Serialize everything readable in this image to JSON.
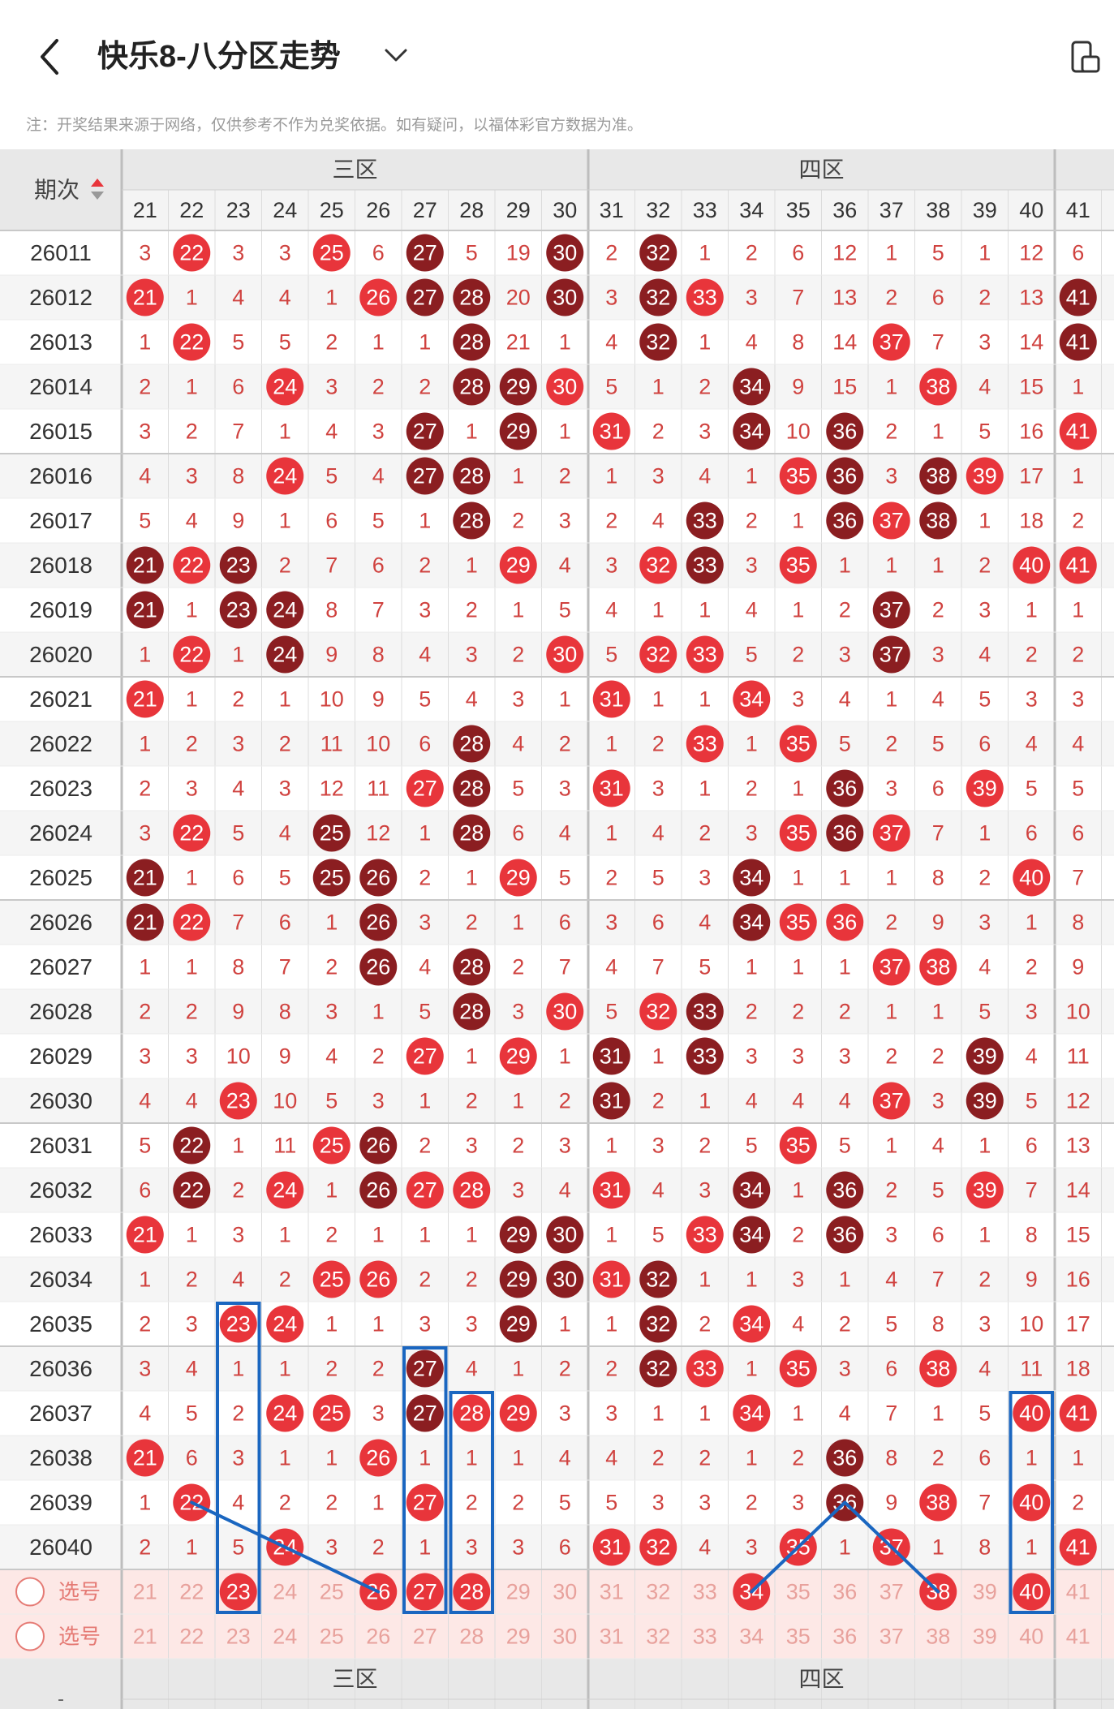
{
  "header": {
    "title": "快乐8-八分区走势",
    "back_icon": "chevron-left-icon",
    "dropdown_icon": "chevron-down-icon",
    "right_icon": "device-icon"
  },
  "notice": "注：开奖结果来源于网络，仅供参考不作为兑奖依据。如有疑问，以福体彩官方数据为准。",
  "table": {
    "period_header": "期次",
    "sort_icon": "sort-arrows-icon",
    "zones": [
      "三区",
      "四区"
    ],
    "columns": [
      21,
      22,
      23,
      24,
      25,
      26,
      27,
      28,
      29,
      30,
      31,
      32,
      33,
      34,
      35,
      36,
      37,
      38,
      39,
      40,
      41
    ],
    "select_label": "选号",
    "bottom_dash": "-",
    "rows": [
      {
        "period": "26011",
        "cells": [
          3,
          22,
          3,
          3,
          25,
          6,
          27,
          5,
          19,
          30,
          2,
          32,
          1,
          2,
          6,
          12,
          1,
          5,
          1,
          12,
          6
        ],
        "hits": [
          22,
          25,
          27,
          30,
          32
        ]
      },
      {
        "period": "26012",
        "cells": [
          21,
          1,
          4,
          4,
          1,
          26,
          27,
          28,
          20,
          30,
          3,
          32,
          33,
          3,
          7,
          13,
          2,
          6,
          2,
          13,
          41
        ],
        "hits": [
          21,
          26,
          27,
          28,
          30,
          32,
          33,
          41
        ]
      },
      {
        "period": "26013",
        "cells": [
          1,
          22,
          5,
          5,
          2,
          1,
          1,
          28,
          21,
          1,
          4,
          32,
          1,
          4,
          8,
          14,
          37,
          7,
          3,
          14,
          41
        ],
        "hits": [
          22,
          28,
          32,
          37,
          41
        ]
      },
      {
        "period": "26014",
        "cells": [
          2,
          1,
          6,
          24,
          3,
          2,
          2,
          28,
          29,
          30,
          5,
          1,
          2,
          34,
          9,
          15,
          1,
          38,
          4,
          15,
          1
        ],
        "hits": [
          24,
          28,
          29,
          30,
          34,
          38
        ]
      },
      {
        "period": "26015",
        "cells": [
          3,
          2,
          7,
          1,
          4,
          3,
          27,
          1,
          29,
          1,
          31,
          2,
          3,
          34,
          10,
          36,
          2,
          1,
          5,
          16,
          41
        ],
        "hits": [
          27,
          29,
          31,
          34,
          36,
          41
        ]
      },
      {
        "period": "26016",
        "cells": [
          4,
          3,
          8,
          24,
          5,
          4,
          27,
          28,
          1,
          2,
          1,
          3,
          4,
          1,
          35,
          36,
          3,
          38,
          39,
          17,
          1
        ],
        "hits": [
          24,
          27,
          28,
          35,
          36,
          38,
          39
        ]
      },
      {
        "period": "26017",
        "cells": [
          5,
          4,
          9,
          1,
          6,
          5,
          1,
          28,
          2,
          3,
          2,
          4,
          33,
          2,
          1,
          36,
          37,
          38,
          1,
          18,
          2
        ],
        "hits": [
          28,
          33,
          36,
          37,
          38
        ]
      },
      {
        "period": "26018",
        "cells": [
          21,
          22,
          23,
          2,
          7,
          6,
          2,
          1,
          29,
          4,
          3,
          32,
          33,
          3,
          35,
          1,
          1,
          1,
          2,
          40,
          41
        ],
        "hits": [
          21,
          22,
          23,
          29,
          32,
          33,
          35,
          40,
          41
        ]
      },
      {
        "period": "26019",
        "cells": [
          21,
          1,
          23,
          24,
          8,
          7,
          3,
          2,
          1,
          5,
          4,
          1,
          1,
          4,
          1,
          2,
          37,
          2,
          3,
          1,
          1
        ],
        "hits": [
          21,
          23,
          24,
          37
        ]
      },
      {
        "period": "26020",
        "cells": [
          1,
          22,
          1,
          24,
          9,
          8,
          4,
          3,
          2,
          30,
          5,
          32,
          33,
          5,
          2,
          3,
          37,
          3,
          4,
          2,
          2
        ],
        "hits": [
          22,
          24,
          30,
          32,
          33,
          37
        ]
      },
      {
        "period": "26021",
        "cells": [
          21,
          1,
          2,
          1,
          10,
          9,
          5,
          4,
          3,
          1,
          31,
          1,
          1,
          34,
          3,
          4,
          1,
          4,
          5,
          3,
          3
        ],
        "hits": [
          21,
          31,
          34
        ]
      },
      {
        "period": "26022",
        "cells": [
          1,
          2,
          3,
          2,
          11,
          10,
          6,
          28,
          4,
          2,
          1,
          2,
          33,
          1,
          35,
          5,
          2,
          5,
          6,
          4,
          4
        ],
        "hits": [
          28,
          33,
          35
        ]
      },
      {
        "period": "26023",
        "cells": [
          2,
          3,
          4,
          3,
          12,
          11,
          27,
          28,
          5,
          3,
          31,
          3,
          1,
          2,
          1,
          36,
          3,
          6,
          39,
          5,
          5
        ],
        "hits": [
          27,
          28,
          31,
          36,
          39
        ]
      },
      {
        "period": "26024",
        "cells": [
          3,
          22,
          5,
          4,
          25,
          12,
          1,
          28,
          6,
          4,
          1,
          4,
          2,
          3,
          35,
          36,
          37,
          7,
          1,
          6,
          6
        ],
        "hits": [
          22,
          25,
          28,
          35,
          36,
          37
        ]
      },
      {
        "period": "26025",
        "cells": [
          21,
          1,
          6,
          5,
          25,
          26,
          2,
          1,
          29,
          5,
          2,
          5,
          3,
          34,
          1,
          1,
          1,
          8,
          2,
          40,
          7
        ],
        "hits": [
          21,
          25,
          26,
          29,
          34,
          40
        ]
      },
      {
        "period": "26026",
        "cells": [
          21,
          22,
          7,
          6,
          1,
          26,
          3,
          2,
          1,
          6,
          3,
          6,
          4,
          34,
          35,
          36,
          2,
          9,
          3,
          1,
          8
        ],
        "hits": [
          21,
          22,
          26,
          34,
          35,
          36
        ]
      },
      {
        "period": "26027",
        "cells": [
          1,
          1,
          8,
          7,
          2,
          26,
          4,
          28,
          2,
          7,
          4,
          7,
          5,
          1,
          1,
          1,
          37,
          38,
          4,
          2,
          9
        ],
        "hits": [
          26,
          28,
          37,
          38
        ]
      },
      {
        "period": "26028",
        "cells": [
          2,
          2,
          9,
          8,
          3,
          1,
          5,
          28,
          3,
          30,
          5,
          32,
          33,
          2,
          2,
          2,
          1,
          1,
          5,
          3,
          10
        ],
        "hits": [
          28,
          30,
          32,
          33
        ]
      },
      {
        "period": "26029",
        "cells": [
          3,
          3,
          10,
          9,
          4,
          2,
          27,
          1,
          29,
          1,
          31,
          1,
          33,
          3,
          3,
          3,
          2,
          2,
          39,
          4,
          11
        ],
        "hits": [
          27,
          29,
          31,
          33,
          39
        ]
      },
      {
        "period": "26030",
        "cells": [
          4,
          4,
          23,
          10,
          5,
          3,
          1,
          2,
          1,
          2,
          31,
          2,
          1,
          4,
          4,
          4,
          37,
          3,
          39,
          5,
          12
        ],
        "hits": [
          23,
          31,
          37,
          39
        ]
      },
      {
        "period": "26031",
        "cells": [
          5,
          22,
          1,
          11,
          25,
          26,
          2,
          3,
          2,
          3,
          1,
          3,
          2,
          5,
          35,
          5,
          1,
          4,
          1,
          6,
          13
        ],
        "hits": [
          22,
          25,
          26,
          35
        ]
      },
      {
        "period": "26032",
        "cells": [
          6,
          22,
          2,
          24,
          1,
          26,
          27,
          28,
          3,
          4,
          31,
          4,
          3,
          34,
          1,
          36,
          2,
          5,
          39,
          7,
          14
        ],
        "hits": [
          22,
          24,
          26,
          27,
          28,
          31,
          34,
          36,
          39
        ]
      },
      {
        "period": "26033",
        "cells": [
          21,
          1,
          3,
          1,
          2,
          1,
          1,
          1,
          29,
          30,
          1,
          5,
          33,
          34,
          2,
          36,
          3,
          6,
          1,
          8,
          15
        ],
        "hits": [
          21,
          29,
          30,
          33,
          34,
          36
        ]
      },
      {
        "period": "26034",
        "cells": [
          1,
          2,
          4,
          2,
          25,
          26,
          2,
          2,
          29,
          30,
          31,
          32,
          1,
          1,
          3,
          1,
          4,
          7,
          2,
          9,
          16
        ],
        "hits": [
          25,
          26,
          29,
          30,
          31,
          32
        ]
      },
      {
        "period": "26035",
        "cells": [
          2,
          3,
          23,
          24,
          1,
          1,
          3,
          3,
          29,
          1,
          1,
          32,
          2,
          34,
          4,
          2,
          5,
          8,
          3,
          10,
          17
        ],
        "hits": [
          23,
          24,
          29,
          32,
          34
        ]
      },
      {
        "period": "26036",
        "cells": [
          3,
          4,
          1,
          1,
          2,
          2,
          27,
          4,
          1,
          2,
          2,
          32,
          33,
          1,
          35,
          3,
          6,
          38,
          4,
          11,
          18
        ],
        "hits": [
          27,
          32,
          33,
          35,
          38
        ]
      },
      {
        "period": "26037",
        "cells": [
          4,
          5,
          2,
          24,
          25,
          3,
          27,
          28,
          29,
          3,
          3,
          1,
          1,
          34,
          1,
          4,
          7,
          1,
          5,
          40,
          41
        ],
        "hits": [
          24,
          25,
          27,
          28,
          29,
          34,
          40,
          41
        ]
      },
      {
        "period": "26038",
        "cells": [
          21,
          6,
          3,
          1,
          1,
          26,
          1,
          1,
          1,
          4,
          4,
          2,
          2,
          1,
          2,
          36,
          8,
          2,
          6,
          1,
          1
        ],
        "hits": [
          21,
          26,
          36
        ]
      },
      {
        "period": "26039",
        "cells": [
          1,
          22,
          4,
          2,
          2,
          1,
          27,
          2,
          2,
          5,
          5,
          3,
          3,
          2,
          3,
          36,
          9,
          38,
          7,
          40,
          2
        ],
        "hits": [
          22,
          27,
          36,
          38,
          40
        ]
      },
      {
        "period": "26040",
        "cells": [
          2,
          1,
          5,
          24,
          3,
          2,
          1,
          3,
          3,
          6,
          31,
          32,
          4,
          3,
          35,
          1,
          37,
          1,
          8,
          1,
          41
        ],
        "hits": [
          24,
          31,
          32,
          35,
          37,
          41
        ]
      }
    ],
    "select_hits": [
      23,
      26,
      27,
      28,
      34,
      38,
      40
    ]
  },
  "colors": {
    "hit_red": "#e8353b",
    "hit_dark": "#8b1e21",
    "miss_text": "#d0423f",
    "header_bg": "#e8e8e8",
    "select_bg": "#fde8e6",
    "marker_blue": "#1a66c0"
  }
}
